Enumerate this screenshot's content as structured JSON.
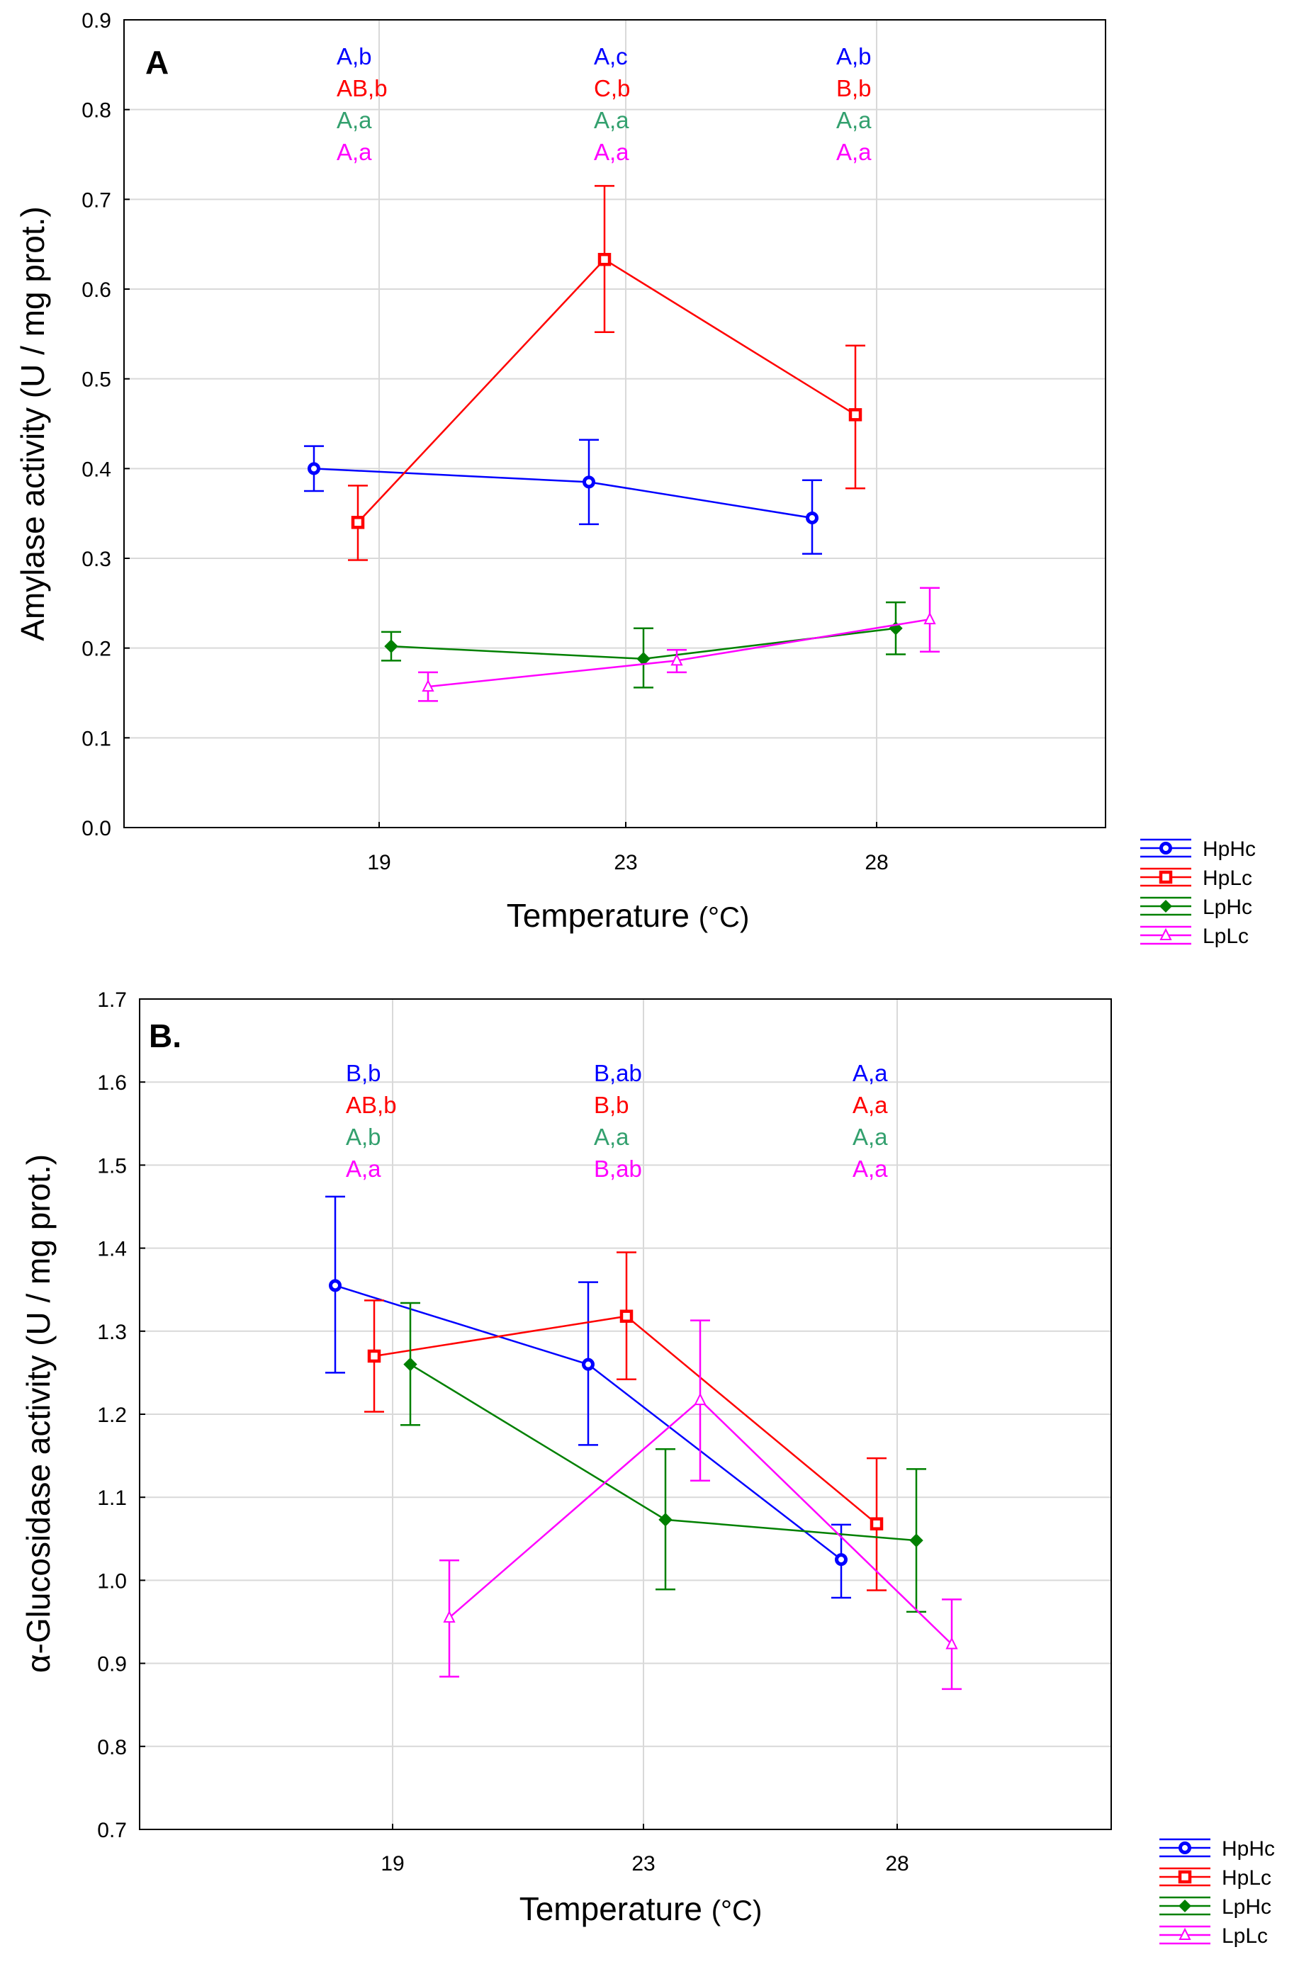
{
  "chart_data": [
    {
      "type": "line",
      "panel_label": "A",
      "xlabel": "Temperature",
      "xlabel_unit": "(°C)",
      "ylabel": "Amylase activity (U / mg prot.)",
      "categories": [
        "19",
        "23",
        "28"
      ],
      "ylim": [
        0.0,
        0.9
      ],
      "yticks": [
        0.0,
        0.1,
        0.2,
        0.3,
        0.4,
        0.5,
        0.6,
        0.7,
        0.8,
        0.9
      ],
      "ytick_labels": [
        "0.0",
        "0.1",
        "0.2",
        "0.3",
        "0.4",
        "0.5",
        "0.6",
        "0.7",
        "0.8",
        "0.9"
      ],
      "grid": true,
      "legend_position": "outside-bottom-right",
      "series": [
        {
          "name": "HpHc",
          "color": "#0000ff",
          "marker": "circle",
          "values": [
            0.4,
            0.385,
            0.345
          ],
          "err_low": [
            0.375,
            0.338,
            0.305
          ],
          "err_high": [
            0.425,
            0.432,
            0.387
          ]
        },
        {
          "name": "HpLc",
          "color": "#ff0000",
          "marker": "square",
          "values": [
            0.34,
            0.633,
            0.46
          ],
          "err_low": [
            0.298,
            0.552,
            0.378
          ],
          "err_high": [
            0.381,
            0.715,
            0.537
          ]
        },
        {
          "name": "LpHc",
          "color": "#008000",
          "marker": "diamond",
          "values": [
            0.202,
            0.188,
            0.222
          ],
          "err_low": [
            0.186,
            0.156,
            0.193
          ],
          "err_high": [
            0.218,
            0.222,
            0.251
          ]
        },
        {
          "name": "LpLc",
          "color": "#ff00ff",
          "marker": "triangle",
          "values": [
            0.157,
            0.186,
            0.232
          ],
          "err_low": [
            0.141,
            0.173,
            0.196
          ],
          "err_high": [
            0.173,
            0.198,
            0.267
          ]
        }
      ],
      "annotations": [
        [
          "A,b",
          "AB,b",
          "A,a",
          "A,a"
        ],
        [
          "A,c",
          "C,b",
          "A,a",
          "A,a"
        ],
        [
          "A,b",
          "B,b",
          "A,a",
          "A,a"
        ]
      ]
    },
    {
      "type": "line",
      "panel_label": "B.",
      "xlabel": "Temperature",
      "xlabel_unit": "(°C)",
      "ylabel": "α-Glucosidase activity (U / mg prot.)",
      "categories": [
        "19",
        "23",
        "28"
      ],
      "ylim": [
        0.7,
        1.7
      ],
      "yticks": [
        0.7,
        0.8,
        0.9,
        1.0,
        1.1,
        1.2,
        1.3,
        1.4,
        1.5,
        1.6,
        1.7
      ],
      "ytick_labels": [
        "0.7",
        "0.8",
        "0.9",
        "1.0",
        "1.1",
        "1.2",
        "1.3",
        "1.4",
        "1.5",
        "1.6",
        "1.7"
      ],
      "grid": true,
      "legend_position": "outside-bottom-right",
      "series": [
        {
          "name": "HpHc",
          "color": "#0000ff",
          "marker": "circle",
          "values": [
            1.355,
            1.26,
            1.025
          ],
          "err_low": [
            1.25,
            1.163,
            0.979
          ],
          "err_high": [
            1.462,
            1.359,
            1.067
          ]
        },
        {
          "name": "HpLc",
          "color": "#ff0000",
          "marker": "square",
          "values": [
            1.27,
            1.318,
            1.068
          ],
          "err_low": [
            1.203,
            1.242,
            0.988
          ],
          "err_high": [
            1.337,
            1.395,
            1.147
          ]
        },
        {
          "name": "LpHc",
          "color": "#008000",
          "marker": "diamond",
          "values": [
            1.26,
            1.073,
            1.048
          ],
          "err_low": [
            1.187,
            0.989,
            0.962
          ],
          "err_high": [
            1.334,
            1.158,
            1.134
          ]
        },
        {
          "name": "LpLc",
          "color": "#ff00ff",
          "marker": "triangle",
          "values": [
            0.955,
            1.217,
            0.923
          ],
          "err_low": [
            0.884,
            1.12,
            0.869
          ],
          "err_high": [
            1.024,
            1.313,
            0.977
          ]
        }
      ],
      "annotations": [
        [
          "B,b",
          "AB,b",
          "A,b",
          "A,a"
        ],
        [
          "B,ab",
          "B,b",
          "A,a",
          "B,ab"
        ],
        [
          "A,a",
          "A,a",
          "A,a",
          "A,a"
        ]
      ]
    }
  ],
  "colors": {
    "HpHc": "#0000ff",
    "HpLc": "#ff0000",
    "LpHc": "#008000",
    "LpLc": "#ff00ff",
    "annot_LpHc": "#33a06e",
    "grid": "#d9d9d9"
  }
}
